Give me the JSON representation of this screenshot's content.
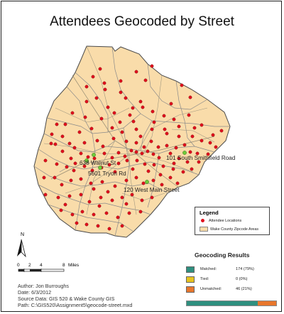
{
  "title": "Attendees Geocoded by Street",
  "map_labels": {
    "road1": "101 South Smithfield Road",
    "road2": "5601 Tryon Rd",
    "road3": "120 West Main Street",
    "road4": "638 Walnut St"
  },
  "legend": {
    "title": "Legend",
    "items": [
      {
        "label": "Attendee Locations",
        "symbol": "red-dot",
        "color": "#e0101e"
      },
      {
        "label": "Wake County Zipcode Areas",
        "symbol": "tan-polygon",
        "color": "#f9dcaa"
      }
    ]
  },
  "north_arrow": {
    "label": "N"
  },
  "scale_bar": {
    "ticks": [
      "0",
      "2",
      "4",
      "8"
    ],
    "unit": "Miles"
  },
  "metadata": {
    "author": "Author:  Jon Burroughs",
    "date": "Date:  6/3/2012",
    "source": "Source Data:  GIS 520 & Wake County GIS",
    "path": "Path:  C:\\GIS520\\Assignment5\\geocode-street.mxd"
  },
  "geocoding": {
    "title": "Geocoding Results",
    "rows": [
      {
        "label": "Matched:",
        "value": "174 (79%)",
        "color": "#2f8f7f",
        "fraction": 0.79
      },
      {
        "label": "Tied:",
        "value": "0 (0%)",
        "color": "#e6c21e",
        "fraction": 0.0
      },
      {
        "label": "Unmatched:",
        "value": "46 (21%)",
        "color": "#e8762c",
        "fraction": 0.21
      }
    ]
  },
  "colors": {
    "county_fill": "#f9dcaa",
    "point_red": "#e0101e",
    "point_green": "#6ecb3a"
  }
}
